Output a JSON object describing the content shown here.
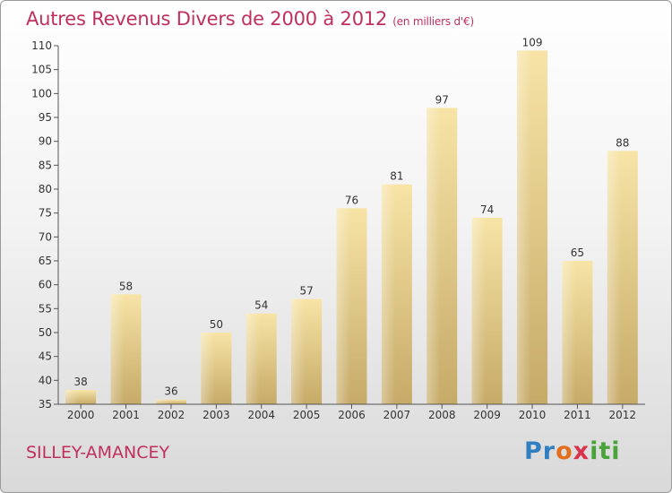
{
  "title": "Autres Revenus Divers de 2000 à 2012",
  "subtitle": "(en milliers d'€)",
  "location": "SILLEY-AMANCEY",
  "logo": "Proxiti",
  "colors": {
    "title": "#c0305e",
    "bar_top": "#f6e2a2",
    "bar_bottom": "#c8ad6c"
  },
  "chart_data": {
    "type": "bar",
    "categories": [
      "2000",
      "2001",
      "2002",
      "2003",
      "2004",
      "2005",
      "2006",
      "2007",
      "2008",
      "2009",
      "2010",
      "2011",
      "2012"
    ],
    "values": [
      38,
      58,
      36,
      50,
      54,
      57,
      76,
      81,
      97,
      74,
      109,
      65,
      88
    ],
    "ylim": [
      35,
      110
    ],
    "yticks": [
      35,
      40,
      45,
      50,
      55,
      60,
      65,
      70,
      75,
      80,
      85,
      90,
      95,
      100,
      105,
      110
    ],
    "grid": false,
    "xlabel": "",
    "ylabel": ""
  }
}
